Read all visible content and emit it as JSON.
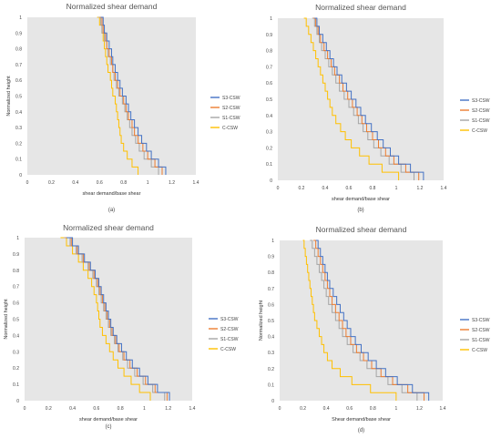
{
  "chart_data": [
    {
      "type": "line",
      "caption": "(a)",
      "title": "Normalized shear demand",
      "xlabel": "shear demand/base shear",
      "ylabel": "Normalized height",
      "xlim": [
        0,
        1.4
      ],
      "ylim": [
        0,
        1
      ],
      "xticks": [
        "0",
        "0.2",
        "0.4",
        "0.6",
        "0.8",
        "1",
        "1.2",
        "1.4"
      ],
      "yticks": [
        "0",
        "0.1",
        "0.2",
        "0.3",
        "0.4",
        "0.5",
        "0.6",
        "0.7",
        "0.8",
        "0.9",
        "1"
      ],
      "legend_position": "right",
      "grid": false,
      "series": [
        {
          "name": "S3-CSW",
          "color": "#4472C4",
          "x": [
            1.15,
            1.09,
            1.03,
            0.99,
            0.95,
            0.92,
            0.89,
            0.86,
            0.84,
            0.82,
            0.79,
            0.77,
            0.75,
            0.73,
            0.71,
            0.7,
            0.68,
            0.66,
            0.64,
            0.63,
            0.61
          ]
        },
        {
          "name": "S2-CSW",
          "color": "#ED7D31",
          "x": [
            1.12,
            1.06,
            1.0,
            0.96,
            0.92,
            0.89,
            0.87,
            0.84,
            0.82,
            0.8,
            0.77,
            0.75,
            0.73,
            0.71,
            0.7,
            0.68,
            0.66,
            0.65,
            0.63,
            0.62,
            0.6
          ]
        },
        {
          "name": "S1-CSW",
          "color": "#A5A5A5",
          "x": [
            1.09,
            1.03,
            0.97,
            0.93,
            0.9,
            0.87,
            0.85,
            0.83,
            0.81,
            0.79,
            0.76,
            0.74,
            0.72,
            0.71,
            0.69,
            0.67,
            0.66,
            0.64,
            0.62,
            0.61,
            0.59
          ]
        },
        {
          "name": "C-CSW",
          "color": "#FFC000",
          "x": [
            0.92,
            0.87,
            0.83,
            0.8,
            0.78,
            0.77,
            0.76,
            0.75,
            0.74,
            0.73,
            0.71,
            0.7,
            0.69,
            0.67,
            0.66,
            0.65,
            0.64,
            0.63,
            0.62,
            0.6,
            0.58
          ]
        }
      ]
    },
    {
      "type": "line",
      "caption": "(b)",
      "title": "Normalized shear demand",
      "xlabel": "shear demand/base shear",
      "ylabel": "",
      "xlim": [
        0,
        1.4
      ],
      "ylim": [
        0,
        1
      ],
      "xticks": [
        "0",
        "0.2",
        "0.4",
        "0.6",
        "0.8",
        "1",
        "1.2",
        "1.4"
      ],
      "yticks": [
        "0",
        "0.1",
        "0.2",
        "0.3",
        "0.4",
        "0.5",
        "0.6",
        "0.7",
        "0.8",
        "0.9",
        "1"
      ],
      "legend_position": "right",
      "grid": false,
      "series": [
        {
          "name": "S3-CSW",
          "color": "#4472C4",
          "x": [
            1.23,
            1.12,
            1.02,
            0.95,
            0.89,
            0.84,
            0.79,
            0.74,
            0.7,
            0.66,
            0.62,
            0.58,
            0.54,
            0.5,
            0.47,
            0.44,
            0.41,
            0.38,
            0.35,
            0.33,
            0.31
          ]
        },
        {
          "name": "S2-CSW",
          "color": "#ED7D31",
          "x": [
            1.19,
            1.08,
            0.98,
            0.91,
            0.85,
            0.8,
            0.75,
            0.71,
            0.67,
            0.63,
            0.59,
            0.55,
            0.52,
            0.48,
            0.45,
            0.42,
            0.39,
            0.36,
            0.34,
            0.32,
            0.3
          ]
        },
        {
          "name": "S1-CSW",
          "color": "#A5A5A5",
          "x": [
            1.15,
            1.04,
            0.94,
            0.87,
            0.81,
            0.76,
            0.72,
            0.68,
            0.64,
            0.6,
            0.56,
            0.52,
            0.49,
            0.46,
            0.43,
            0.4,
            0.37,
            0.35,
            0.33,
            0.31,
            0.29
          ]
        },
        {
          "name": "C-CSW",
          "color": "#FFC000",
          "x": [
            1.02,
            0.88,
            0.77,
            0.69,
            0.62,
            0.57,
            0.53,
            0.49,
            0.46,
            0.44,
            0.42,
            0.4,
            0.38,
            0.36,
            0.34,
            0.32,
            0.3,
            0.28,
            0.26,
            0.24,
            0.22
          ]
        }
      ]
    },
    {
      "type": "line",
      "caption": "(c)",
      "title": "Normalized shear demand",
      "xlabel": "shear demand/base shear",
      "ylabel": "Normalized height",
      "xlim": [
        0,
        1.4
      ],
      "ylim": [
        0,
        1
      ],
      "xticks": [
        "0",
        "0.2",
        "0.4",
        "0.6",
        "0.8",
        "1",
        "1.2",
        "1.4"
      ],
      "yticks": [
        "0",
        "0.1",
        "0.2",
        "0.3",
        "0.4",
        "0.5",
        "0.6",
        "0.7",
        "0.8",
        "0.9",
        "1"
      ],
      "legend_position": "right",
      "grid": false,
      "series": [
        {
          "name": "S3-CSW",
          "color": "#4472C4",
          "x": [
            1.21,
            1.11,
            1.03,
            0.96,
            0.9,
            0.85,
            0.81,
            0.77,
            0.74,
            0.72,
            0.7,
            0.68,
            0.66,
            0.64,
            0.62,
            0.59,
            0.55,
            0.5,
            0.45,
            0.4,
            0.35
          ]
        },
        {
          "name": "S2-CSW",
          "color": "#ED7D31",
          "x": [
            1.19,
            1.09,
            1.01,
            0.94,
            0.88,
            0.83,
            0.79,
            0.76,
            0.73,
            0.71,
            0.69,
            0.67,
            0.65,
            0.63,
            0.61,
            0.58,
            0.54,
            0.49,
            0.44,
            0.39,
            0.34
          ]
        },
        {
          "name": "S1-CSW",
          "color": "#A5A5A5",
          "x": [
            1.17,
            1.07,
            0.99,
            0.92,
            0.86,
            0.82,
            0.78,
            0.75,
            0.72,
            0.7,
            0.68,
            0.66,
            0.64,
            0.62,
            0.6,
            0.57,
            0.53,
            0.48,
            0.43,
            0.38,
            0.33
          ]
        },
        {
          "name": "C-CSW",
          "color": "#FFC000",
          "x": [
            1.05,
            0.96,
            0.89,
            0.83,
            0.78,
            0.74,
            0.71,
            0.68,
            0.65,
            0.63,
            0.62,
            0.61,
            0.6,
            0.58,
            0.56,
            0.53,
            0.49,
            0.45,
            0.4,
            0.35,
            0.3
          ]
        }
      ]
    },
    {
      "type": "line",
      "caption": "(d)",
      "title": "Normalized shear demand",
      "xlabel": "Shear demand/base shear",
      "ylabel": "Normalized height",
      "xlim": [
        0,
        1.4
      ],
      "ylim": [
        0,
        1
      ],
      "xticks": [
        "0",
        "0.2",
        "0.4",
        "0.6",
        "0.8",
        "1",
        "1.2",
        "1.4"
      ],
      "yticks": [
        "0",
        "0.1",
        "0.2",
        "0.3",
        "0.4",
        "0.5",
        "0.6",
        "0.7",
        "0.8",
        "0.9",
        "1"
      ],
      "legend_position": "right",
      "grid": false,
      "series": [
        {
          "name": "S3-CSW",
          "color": "#4472C4",
          "x": [
            1.28,
            1.14,
            1.01,
            0.91,
            0.83,
            0.76,
            0.7,
            0.65,
            0.61,
            0.58,
            0.55,
            0.52,
            0.49,
            0.46,
            0.43,
            0.41,
            0.39,
            0.37,
            0.35,
            0.33,
            0.31
          ]
        },
        {
          "name": "S2-CSW",
          "color": "#ED7D31",
          "x": [
            1.24,
            1.1,
            0.97,
            0.87,
            0.79,
            0.72,
            0.66,
            0.61,
            0.57,
            0.54,
            0.51,
            0.48,
            0.45,
            0.43,
            0.41,
            0.39,
            0.37,
            0.35,
            0.33,
            0.31,
            0.29
          ]
        },
        {
          "name": "S1-CSW",
          "color": "#A5A5A5",
          "x": [
            1.18,
            1.05,
            0.93,
            0.83,
            0.75,
            0.69,
            0.63,
            0.58,
            0.54,
            0.51,
            0.48,
            0.45,
            0.42,
            0.4,
            0.38,
            0.36,
            0.34,
            0.32,
            0.3,
            0.28,
            0.26
          ]
        },
        {
          "name": "C-CSW",
          "color": "#FFC000",
          "x": [
            1.0,
            0.78,
            0.62,
            0.52,
            0.45,
            0.41,
            0.38,
            0.36,
            0.34,
            0.32,
            0.3,
            0.29,
            0.28,
            0.27,
            0.26,
            0.25,
            0.24,
            0.23,
            0.22,
            0.21,
            0.2
          ]
        }
      ]
    }
  ]
}
